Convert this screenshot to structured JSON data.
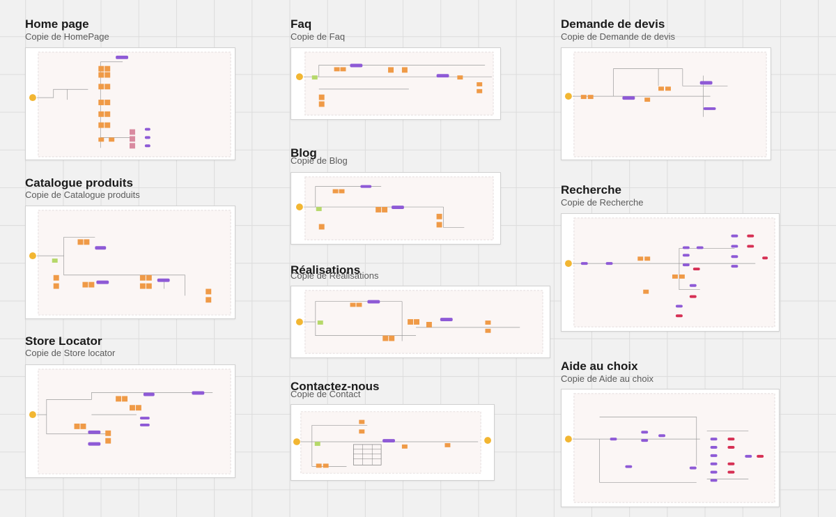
{
  "colors": {
    "start_node": "#f2b632",
    "task": "#ef9a47",
    "event": "#8e5ad6",
    "error": "#d63054",
    "green": "#b6d86a",
    "panel": "#fbf6f5"
  },
  "boards": [
    {
      "title": "Home page",
      "subtitle": "Copie de HomePage"
    },
    {
      "title": "Catalogue produits",
      "subtitle": "Copie de Catalogue produits"
    },
    {
      "title": "Store Locator",
      "subtitle": "Copie de Store locator"
    },
    {
      "title": "Faq",
      "subtitle": "Copie de Faq"
    },
    {
      "title": "Blog",
      "subtitle": "Copie de Blog"
    },
    {
      "title": "Réalisations",
      "subtitle": "Copie de Réalisations"
    },
    {
      "title": "Contactez-nous",
      "subtitle": "Copie de Contact"
    },
    {
      "title": "Demande de devis",
      "subtitle": "Copie de Demande de devis"
    },
    {
      "title": "Recherche",
      "subtitle": "Copie de Recherche"
    },
    {
      "title": "Aide au choix",
      "subtitle": "Copie de Aide au choix"
    }
  ]
}
